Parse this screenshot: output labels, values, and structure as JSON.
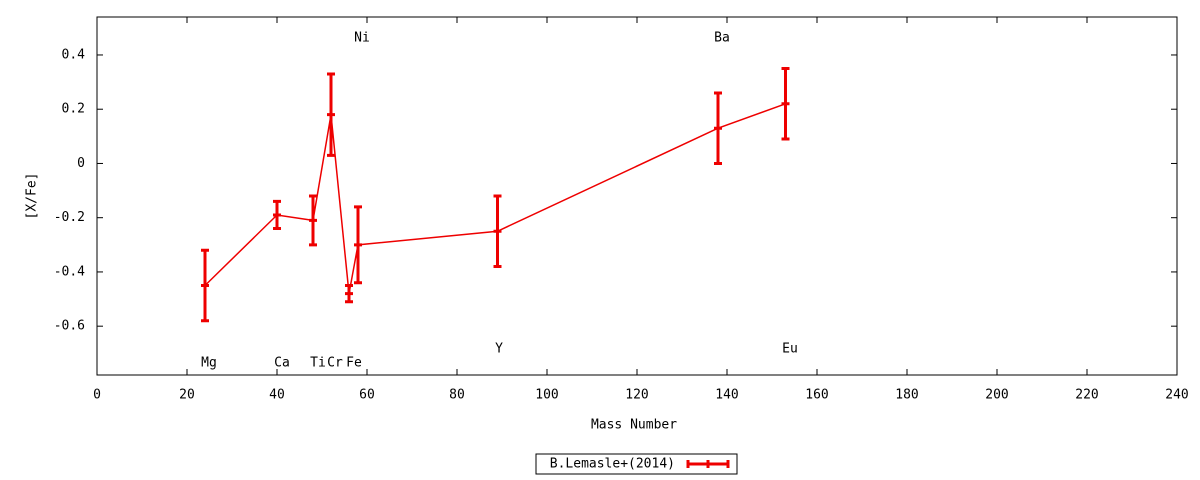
{
  "chart_data": {
    "type": "line",
    "xlabel": "Mass Number",
    "ylabel": "[X/Fe]",
    "xlim": [
      0,
      240
    ],
    "ylim": [
      -0.78,
      0.54
    ],
    "xticks": [
      0,
      20,
      40,
      60,
      80,
      100,
      120,
      140,
      160,
      180,
      200,
      220,
      240
    ],
    "yticks": [
      0.4,
      0.2,
      0,
      -0.2,
      -0.4,
      -0.6
    ],
    "legend": "bottom",
    "annotations": [
      "Mg",
      "Ca",
      "Ti",
      "Cr",
      "Fe",
      "Ni",
      "Y",
      "Ba",
      "Eu"
    ],
    "series": [
      {
        "name": "B.Lemasle+(2014)",
        "color": "#ee0000",
        "x": [
          24,
          40,
          48,
          52,
          56,
          58,
          89,
          138,
          153
        ],
        "values": [
          -0.45,
          -0.19,
          -0.21,
          0.18,
          -0.48,
          -0.3,
          -0.25,
          0.13,
          0.22
        ],
        "errors": [
          0.13,
          0.05,
          0.09,
          0.15,
          0.03,
          0.14,
          0.13,
          0.13,
          0.13
        ]
      }
    ]
  }
}
